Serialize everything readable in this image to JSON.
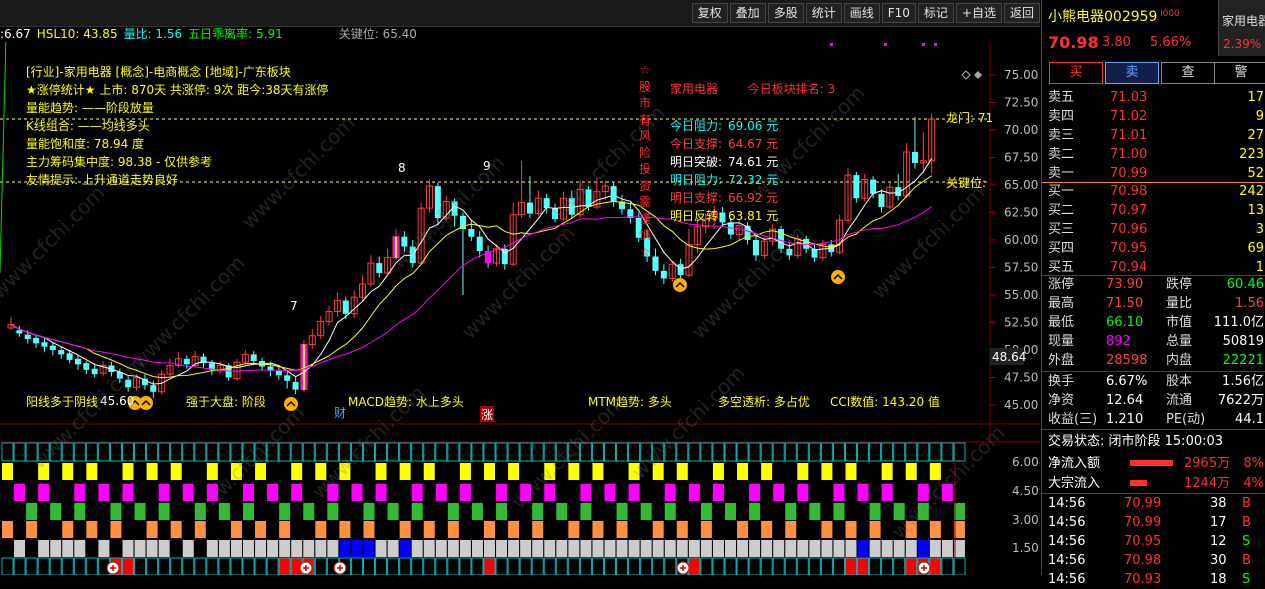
{
  "toolbar": {
    "buttons": [
      "复权",
      "叠加",
      "多股",
      "统计",
      "画线",
      "F10",
      "标记",
      "+自选",
      "返回"
    ]
  },
  "indicator_line": {
    "items": [
      {
        "text": ":6.67",
        "color": "#ffffff"
      },
      {
        "text": "HSL10: 43.85",
        "color": "#ffff00"
      },
      {
        "text": "量比: 1.56",
        "color": "#00ffff"
      },
      {
        "text": "五日乖离率: 5.91",
        "color": "#00ff00"
      },
      {
        "text": "关键位: 65.40",
        "color": "#aaaaaa"
      }
    ]
  },
  "info_block": {
    "lines": [
      {
        "text": "[行业]-家用电器    [概念]-电商概念    [地域]-广东板块",
        "color": "#ffff00"
      },
      {
        "text": "★涨停统计★  上市: 870天  共涨停: 9次  距今:38天有涨停",
        "color": "#ffff00"
      },
      {
        "text": "量能趋势:               ——阶段放量",
        "color": "#ffff00"
      },
      {
        "text": "K线组合: ——均线多头",
        "color": "#ffff00"
      },
      {
        "text": "量能饱和度: 78.94 度",
        "color": "#ffff00"
      },
      {
        "text": "主力筹码集中度: 98.38 - 仅供参考",
        "color": "#ffff00"
      },
      {
        "text": "友情提示: 上升通道走势良好",
        "color": "#ffff00"
      }
    ],
    "vertical_notice": [
      "☆",
      "股",
      "市",
      "有",
      "风",
      "险",
      "投",
      "资",
      "需",
      "谨",
      "慎",
      "☆"
    ],
    "sector_title": "家用电器",
    "sector_rank": "今日板块排名: 3",
    "levels": [
      {
        "label": "今日阻力:",
        "value": "69.06 元",
        "color": "#00ffff"
      },
      {
        "label": "今日支撑:",
        "value": "64.67 元",
        "color": "#ff4040"
      },
      {
        "label": "明日突破:",
        "value": "74.61 元",
        "color": "#ffffff"
      },
      {
        "label": "明日阻力:",
        "value": "72.32 元",
        "color": "#00ffff"
      },
      {
        "label": "明日支撑:",
        "value": "66.92 元",
        "color": "#ff4040"
      },
      {
        "label": "明日反转:",
        "value": "63.81 元",
        "color": "#ffff00"
      }
    ],
    "bottom_labels": [
      {
        "text": "阳线多于阴线",
        "color": "#ffff00"
      },
      {
        "text": "强于大盘: 阶段",
        "color": "#ffff00"
      },
      {
        "text": "MACD趋势: 水上多头",
        "color": "#ffff00"
      },
      {
        "text": "MTM趋势: 多头",
        "color": "#ffff00"
      },
      {
        "text": "多空透析: 多占优",
        "color": "#ffff00"
      },
      {
        "text": "CCI数值: 143.20 值",
        "color": "#ffff00"
      }
    ],
    "markers": {
      "cai": "财",
      "zhang": "涨",
      "n7": "7",
      "n8": "8",
      "n9": "9",
      "low_label": "45.60",
      "dragon": "龙门: 71",
      "key_level": "关键位:",
      "current_price_tag": "48.64"
    }
  },
  "price_axis": {
    "ticks": [
      "75.00",
      "72.50",
      "70.00",
      "67.50",
      "65.00",
      "62.50",
      "60.00",
      "57.50",
      "55.00",
      "52.50",
      "50.00",
      "47.50",
      "45.00"
    ]
  },
  "sub_axis": {
    "ticks": [
      "6.00",
      "4.50",
      "3.00",
      "1.50"
    ]
  },
  "stock": {
    "name": "小熊电器",
    "code": "002959",
    "sector_btn": "家用电器",
    "price": "70.98",
    "change": "3.80",
    "change_pct": "5.66%",
    "sector_pct": "2.39%"
  },
  "trade_buttons": [
    "买",
    "卖",
    "查",
    "警"
  ],
  "order_book": {
    "asks": [
      {
        "label": "卖五",
        "price": "71.03",
        "vol": "17"
      },
      {
        "label": "卖四",
        "price": "71.02",
        "vol": "9"
      },
      {
        "label": "卖三",
        "price": "71.01",
        "vol": "27"
      },
      {
        "label": "卖二",
        "price": "71.00",
        "vol": "223"
      },
      {
        "label": "卖一",
        "price": "70.99",
        "vol": "52"
      }
    ],
    "bids": [
      {
        "label": "买一",
        "price": "70.98",
        "vol": "242"
      },
      {
        "label": "买二",
        "price": "70.97",
        "vol": "13"
      },
      {
        "label": "买三",
        "price": "70.96",
        "vol": "3"
      },
      {
        "label": "买四",
        "price": "70.95",
        "vol": "69"
      },
      {
        "label": "买五",
        "price": "70.94",
        "vol": "1"
      }
    ]
  },
  "stats": [
    {
      "l1": "涨停",
      "v1": "73.90",
      "c1": "#ff4040",
      "l2": "跌停",
      "v2": "60.46",
      "c2": "#00ff00"
    },
    {
      "l1": "最高",
      "v1": "71.50",
      "c1": "#ff4040",
      "l2": "量比",
      "v2": "1.56",
      "c2": "#ff4040"
    },
    {
      "l1": "最低",
      "v1": "66.10",
      "c1": "#00ff00",
      "l2": "市值",
      "v2": "111.0亿",
      "c2": "#ffffff"
    },
    {
      "l1": "现量",
      "v1": "892",
      "c1": "#ff00ff",
      "l2": "总量",
      "v2": "50819",
      "c2": "#ffffff"
    },
    {
      "l1": "外盘",
      "v1": "28598",
      "c1": "#ff4040",
      "l2": "内盘",
      "v2": "22221",
      "c2": "#00ff00"
    },
    {
      "l1": "换手",
      "v1": "6.67%",
      "c1": "#ffffff",
      "l2": "股本",
      "v2": "1.56亿",
      "c2": "#ffffff"
    },
    {
      "l1": "净资",
      "v1": "12.64",
      "c1": "#ffffff",
      "l2": "流通",
      "v2": "7622万",
      "c2": "#ffffff"
    },
    {
      "l1": "收益(三)",
      "v1": "1.210",
      "c1": "#ffffff",
      "l2": "PE(动)",
      "v2": "44.1",
      "c2": "#ffffff"
    }
  ],
  "status": "交易状态: 闭市阶段 15:00:03",
  "flows": [
    {
      "label": "净流入额",
      "value": "2965万",
      "pct": "8%",
      "fill": 0.9
    },
    {
      "label": "大宗流入",
      "value": "1244万",
      "pct": "4%",
      "fill": 0.35
    }
  ],
  "ticks_list": [
    {
      "time": "14:56",
      "price": "70.99",
      "vol": "38",
      "side": "B"
    },
    {
      "time": "14:56",
      "price": "70.99",
      "vol": "17",
      "side": "B"
    },
    {
      "time": "14:56",
      "price": "70.95",
      "vol": "12",
      "side": "S"
    },
    {
      "time": "14:56",
      "price": "70.98",
      "vol": "30",
      "side": "B"
    },
    {
      "time": "14:56",
      "price": "70.93",
      "vol": "18",
      "side": "S"
    }
  ],
  "colors": {
    "up": "#ff3c3c",
    "down": "#54ffff",
    "ma5": "#ffffff",
    "ma10": "#ffff00",
    "ma20": "#ff00ff",
    "ma60": "#00dd00",
    "grid": "#7a0000"
  },
  "watermark": "www.cfchi.com"
}
